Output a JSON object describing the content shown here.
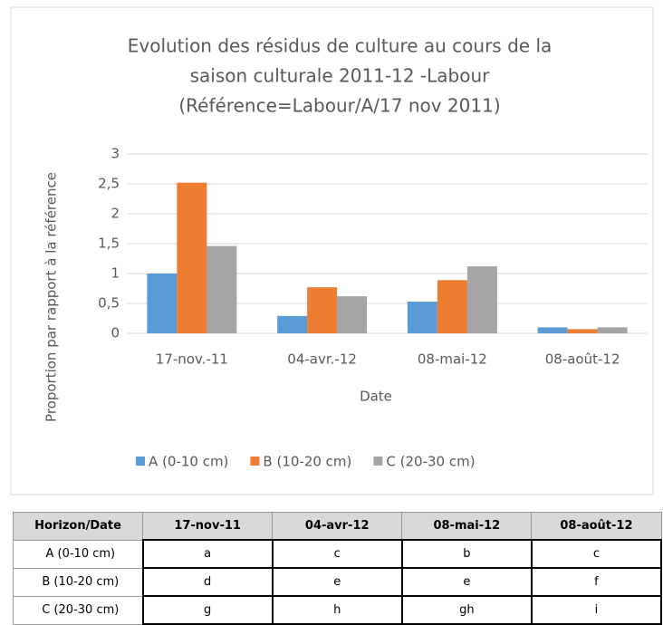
{
  "chart_data": {
    "type": "bar",
    "title": [
      "Evolution des résidus de culture au cours de la",
      "saison culturale 2011-12 -Labour",
      "(Référence=Labour/A/17 nov 2011)"
    ],
    "xlabel": "Date",
    "ylabel": "Proportion par rapport à la référence",
    "categories": [
      "17-nov.-11",
      "04-avr.-12",
      "08-mai-12",
      "08-août-12"
    ],
    "series": [
      {
        "name": "A (0-10 cm)",
        "color": "#5b9bd5",
        "values": [
          1.0,
          0.29,
          0.53,
          0.1
        ]
      },
      {
        "name": "B (10-20 cm)",
        "color": "#ed7d31",
        "values": [
          2.52,
          0.77,
          0.89,
          0.07
        ]
      },
      {
        "name": "C (20-30 cm)",
        "color": "#a5a5a5",
        "values": [
          1.46,
          0.62,
          1.12,
          0.1
        ]
      }
    ],
    "ylim": [
      0,
      3
    ],
    "yticks": [
      0,
      {
        "value": 0.5,
        "label": "0,5"
      },
      1,
      {
        "value": 1.5,
        "label": "1,5"
      },
      2,
      {
        "value": 2.5,
        "label": "2,5"
      },
      3
    ],
    "grid": true,
    "legend": "bottom"
  },
  "table": {
    "header": [
      "Horizon/Date",
      "17-nov-11",
      "04-avr-12",
      "08-mai-12",
      "08-août-12"
    ],
    "rows": [
      [
        "A (0-10 cm)",
        "a",
        "c",
        "b",
        "c"
      ],
      [
        "B (10-20 cm)",
        "d",
        "e",
        "e",
        "f"
      ],
      [
        "C (20-30 cm)",
        "g",
        "h",
        "gh",
        "i"
      ]
    ]
  }
}
